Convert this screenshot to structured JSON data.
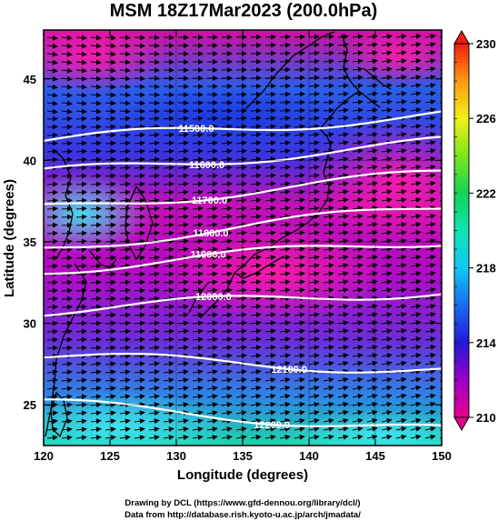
{
  "title": "MSM 18Z17Mar2023 (200.0hPa)",
  "x_axis": {
    "label": "Longitude (degrees)",
    "ticks": [
      "120",
      "125",
      "130",
      "135",
      "140",
      "145",
      "150"
    ],
    "range": [
      120,
      150
    ]
  },
  "y_axis": {
    "label": "Latitude  (degrees)",
    "ticks": [
      "25",
      "30",
      "35",
      "40",
      "45"
    ],
    "range": [
      22.5,
      48
    ]
  },
  "colorbar": {
    "min": 210,
    "max": 230,
    "ticks": [
      "210",
      "214",
      "218",
      "222",
      "226",
      "230"
    ],
    "unit_quantity": "temperature"
  },
  "contours": [
    {
      "label": "11500.0",
      "lat_west": 41.2,
      "lat_east": 42.8,
      "label_lon": 131.5
    },
    {
      "label": "11600.0",
      "lat_west": 39.2,
      "lat_east": 41.1,
      "label_lon": 132.3
    },
    {
      "label": "11700.0",
      "lat_west": 37.0,
      "lat_east": 39.2,
      "label_lon": 132.5
    },
    {
      "label": "11800.0",
      "lat_west": 34.6,
      "lat_east": 37.2,
      "label_lon": 132.6
    },
    {
      "label": "11900.0",
      "lat_west": 33.3,
      "lat_east": 35.1,
      "label_lon": 132.4
    },
    {
      "label": "12000.0",
      "lat_west": 30.8,
      "lat_east": 32.0,
      "label_lon": 132.8
    },
    {
      "label": "12100.0",
      "lat_west": 28.0,
      "lat_east": 27.1,
      "label_lon": 138.5
    },
    {
      "label": "12200.0",
      "lat_west": 25.1,
      "lat_east": 23.4,
      "label_lon": 137.2
    }
  ],
  "credits": {
    "line1": "Drawing by DCL (https://www.gfd-dennou.org/library/dcl/)",
    "line2": "Data from http://database.rish.kyoto-u.ac.jp/arch/jmadata/"
  }
}
